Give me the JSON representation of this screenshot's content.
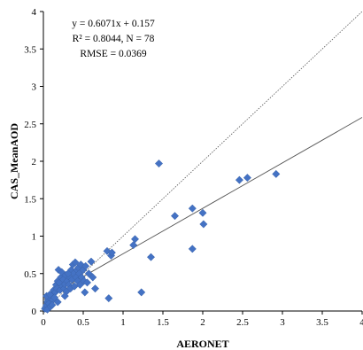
{
  "chart_data": {
    "type": "scatter",
    "xlabel": "AERONET",
    "ylabel": "CAS_MeanAOD",
    "xlim": [
      0,
      4
    ],
    "ylim": [
      0,
      4
    ],
    "xticks": [
      "0",
      "0.5",
      "1",
      "1.5",
      "2",
      "2.5",
      "3",
      "3.5",
      "4"
    ],
    "yticks": [
      "0",
      "0.5",
      "1",
      "1.5",
      "2",
      "2.5",
      "3",
      "3.5",
      "4"
    ],
    "grid": false,
    "marker_color": "#4472c4",
    "annotation": {
      "equation": "y = 0.6071x + 0.157",
      "r2": "R² = 0.8044, N = 78",
      "rmse": "RMSE = 0.0369"
    },
    "regression": {
      "slope": 0.6071,
      "intercept": 0.157
    },
    "one_to_one": true,
    "points": [
      [
        0.02,
        0.03
      ],
      [
        0.03,
        0.05
      ],
      [
        0.04,
        0.08
      ],
      [
        0.05,
        0.12
      ],
      [
        0.05,
        0.02
      ],
      [
        0.06,
        0.15
      ],
      [
        0.07,
        0.1
      ],
      [
        0.08,
        0.18
      ],
      [
        0.09,
        0.06
      ],
      [
        0.1,
        0.22
      ],
      [
        0.04,
        0.2
      ],
      [
        0.12,
        0.15
      ],
      [
        0.13,
        0.28
      ],
      [
        0.15,
        0.25
      ],
      [
        0.16,
        0.35
      ],
      [
        0.17,
        0.3
      ],
      [
        0.18,
        0.4
      ],
      [
        0.19,
        0.55
      ],
      [
        0.2,
        0.38
      ],
      [
        0.21,
        0.28
      ],
      [
        0.22,
        0.45
      ],
      [
        0.23,
        0.52
      ],
      [
        0.24,
        0.33
      ],
      [
        0.25,
        0.42
      ],
      [
        0.26,
        0.3
      ],
      [
        0.27,
        0.36
      ],
      [
        0.28,
        0.48
      ],
      [
        0.3,
        0.4
      ],
      [
        0.32,
        0.35
      ],
      [
        0.33,
        0.45
      ],
      [
        0.35,
        0.55
      ],
      [
        0.36,
        0.42
      ],
      [
        0.37,
        0.62
      ],
      [
        0.38,
        0.5
      ],
      [
        0.4,
        0.65
      ],
      [
        0.41,
        0.45
      ],
      [
        0.42,
        0.55
      ],
      [
        0.43,
        0.4
      ],
      [
        0.44,
        0.58
      ],
      [
        0.45,
        0.5
      ],
      [
        0.46,
        0.35
      ],
      [
        0.47,
        0.62
      ],
      [
        0.48,
        0.45
      ],
      [
        0.5,
        0.55
      ],
      [
        0.51,
        0.4
      ],
      [
        0.52,
        0.25
      ],
      [
        0.53,
        0.6
      ],
      [
        0.55,
        0.38
      ],
      [
        0.57,
        0.5
      ],
      [
        0.6,
        0.66
      ],
      [
        0.62,
        0.45
      ],
      [
        0.65,
        0.3
      ],
      [
        0.8,
        0.8
      ],
      [
        0.82,
        0.17
      ],
      [
        0.85,
        0.74
      ],
      [
        0.86,
        0.78
      ],
      [
        1.13,
        0.88
      ],
      [
        1.15,
        0.96
      ],
      [
        1.23,
        0.25
      ],
      [
        1.35,
        0.72
      ],
      [
        1.45,
        1.97
      ],
      [
        1.65,
        1.27
      ],
      [
        1.87,
        1.37
      ],
      [
        1.87,
        0.83
      ],
      [
        2.0,
        1.31
      ],
      [
        2.01,
        1.16
      ],
      [
        2.46,
        1.75
      ],
      [
        2.56,
        1.78
      ],
      [
        2.92,
        1.83
      ],
      [
        0.08,
        0.22
      ],
      [
        0.11,
        0.08
      ],
      [
        0.14,
        0.18
      ],
      [
        0.29,
        0.26
      ],
      [
        0.34,
        0.3
      ],
      [
        0.31,
        0.5
      ],
      [
        0.39,
        0.33
      ],
      [
        0.27,
        0.2
      ],
      [
        0.18,
        0.12
      ]
    ]
  }
}
